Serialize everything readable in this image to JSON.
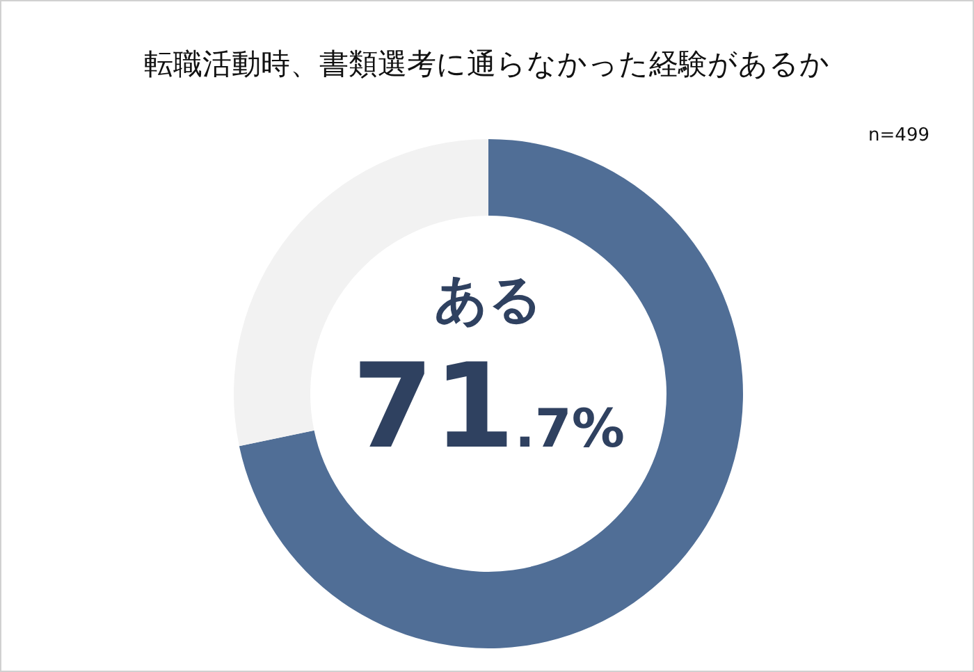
{
  "chart_data": {
    "type": "donut",
    "title": "転職活動時、書類選考に通らなかった経験があるか",
    "categories": [
      "ある",
      null
    ],
    "values": [
      71.7,
      28.3
    ],
    "colors": [
      "#506e96",
      "#f2f2f2"
    ],
    "value_labels": [
      "71.7%",
      null
    ],
    "annotations": [
      "n=499"
    ]
  }
}
